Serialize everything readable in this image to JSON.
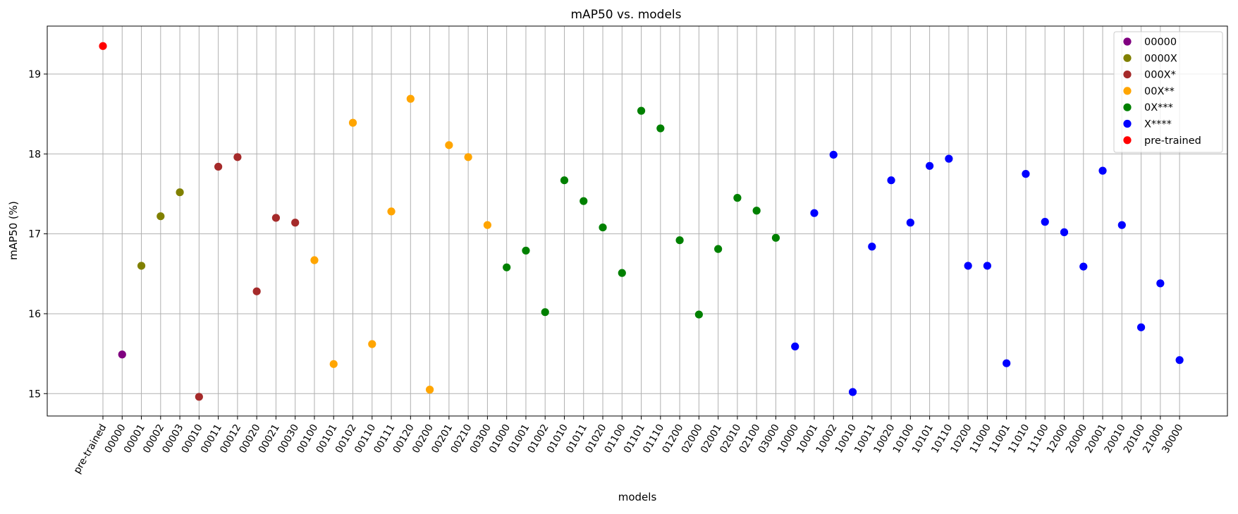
{
  "chart_data": {
    "type": "scatter",
    "title": "mAP50 vs. models",
    "xlabel": "models",
    "ylabel": "mAP50 (%)",
    "ylim": [
      14.72,
      19.6
    ],
    "yticks": [
      15,
      16,
      17,
      18,
      19
    ],
    "grid": true,
    "legend_position": "top-right",
    "categories": [
      "pre-trained",
      "00000",
      "00001",
      "00002",
      "00003",
      "00010",
      "00011",
      "00012",
      "00020",
      "00021",
      "00030",
      "00100",
      "00101",
      "00102",
      "00110",
      "00111",
      "00120",
      "00200",
      "00201",
      "00210",
      "00300",
      "01000",
      "01001",
      "01002",
      "01010",
      "01011",
      "01020",
      "01100",
      "01101",
      "01110",
      "01200",
      "02000",
      "02001",
      "02010",
      "02100",
      "03000",
      "10000",
      "10001",
      "10002",
      "10010",
      "10011",
      "10020",
      "10100",
      "10101",
      "10110",
      "10200",
      "11000",
      "11001",
      "11010",
      "11100",
      "12000",
      "20000",
      "20001",
      "20010",
      "20100",
      "21000",
      "30000"
    ],
    "series": [
      {
        "name": "00000",
        "color": "#800080",
        "x": [
          "00000"
        ],
        "y": [
          15.49
        ]
      },
      {
        "name": "0000X",
        "color": "#808000",
        "x": [
          "00001",
          "00002",
          "00003"
        ],
        "y": [
          16.6,
          17.22,
          17.52
        ]
      },
      {
        "name": "000X*",
        "color": "#a52a2a",
        "x": [
          "00010",
          "00011",
          "00012",
          "00020",
          "00021",
          "00030"
        ],
        "y": [
          14.96,
          17.84,
          17.96,
          16.28,
          17.2,
          17.14
        ]
      },
      {
        "name": "00X**",
        "color": "#ffa500",
        "x": [
          "00100",
          "00101",
          "00102",
          "00110",
          "00111",
          "00120",
          "00200",
          "00201",
          "00210",
          "00300"
        ],
        "y": [
          16.67,
          15.37,
          18.39,
          15.62,
          17.28,
          18.69,
          15.05,
          18.11,
          17.96,
          17.11
        ]
      },
      {
        "name": "0X***",
        "color": "#008000",
        "x": [
          "01000",
          "01001",
          "01002",
          "01010",
          "01011",
          "01020",
          "01100",
          "01101",
          "01110",
          "01200",
          "02000",
          "02001",
          "02010",
          "02100",
          "03000"
        ],
        "y": [
          16.58,
          16.79,
          16.02,
          17.67,
          17.41,
          17.08,
          16.51,
          18.54,
          18.32,
          16.92,
          15.99,
          16.81,
          17.45,
          17.29,
          16.95
        ]
      },
      {
        "name": "X****",
        "color": "#0000ff",
        "x": [
          "10000",
          "10001",
          "10002",
          "10010",
          "10011",
          "10020",
          "10100",
          "10101",
          "10110",
          "10200",
          "11000",
          "11001",
          "11010",
          "11100",
          "12000",
          "20000",
          "20001",
          "20010",
          "20100",
          "21000",
          "30000"
        ],
        "y": [
          15.59,
          17.26,
          17.99,
          15.02,
          16.84,
          17.67,
          17.14,
          17.85,
          17.94,
          16.6,
          16.6,
          15.38,
          17.75,
          17.15,
          17.02,
          16.59,
          17.79,
          17.11,
          15.83,
          16.38,
          15.42
        ]
      },
      {
        "name": "pre-trained",
        "color": "#ff0000",
        "x": [
          "pre-trained"
        ],
        "y": [
          19.35
        ]
      }
    ]
  }
}
